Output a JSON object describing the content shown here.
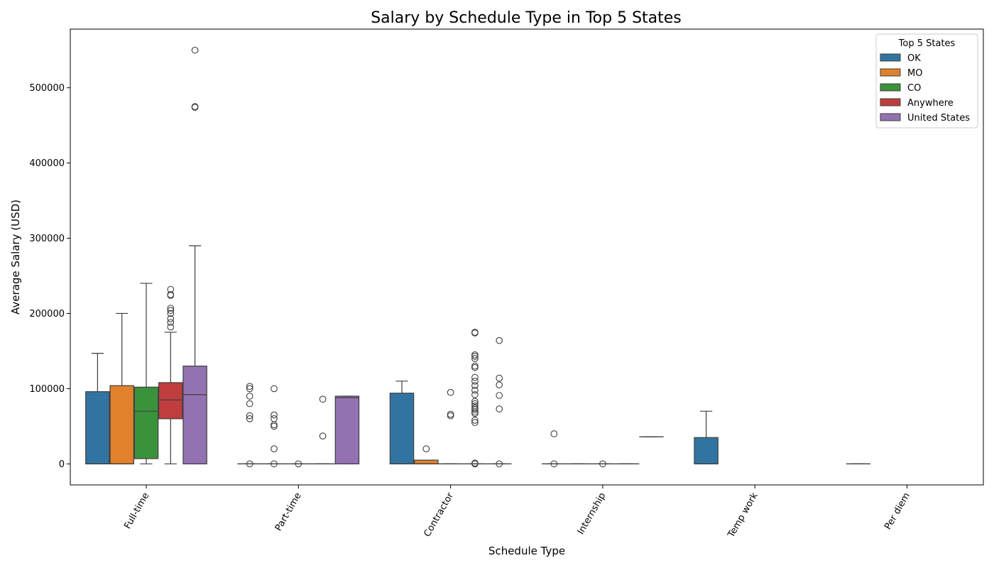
{
  "chart_data": {
    "type": "box",
    "title": "Salary by Schedule Type in Top 5 States",
    "xlabel": "Schedule Type",
    "ylabel": "Average Salary (USD)",
    "categories": [
      "Full-time",
      "Part-time",
      "Contractor",
      "Internship",
      "Temp work",
      "Per diem"
    ],
    "ylim": [
      -28000,
      578000
    ],
    "yticks": [
      0,
      100000,
      200000,
      300000,
      400000,
      500000
    ],
    "grid": false,
    "legend": {
      "title": "Top 5 States",
      "position": "top-right"
    },
    "series": [
      {
        "name": "OK",
        "color": "#3274a1",
        "boxes": [
          {
            "category": "Full-time",
            "whisker_low": 0,
            "q1": 0,
            "median": 0,
            "q3": 96000,
            "whisker_high": 147000,
            "outliers": []
          },
          {
            "category": "Part-time",
            "whisker_low": 0,
            "q1": 0,
            "median": 0,
            "q3": 0,
            "whisker_high": 0,
            "outliers": [
              103000,
              100000,
              90000,
              80000,
              64000,
              60000,
              0
            ]
          },
          {
            "category": "Contractor",
            "whisker_low": 0,
            "q1": 0,
            "median": 0,
            "q3": 94000,
            "whisker_high": 110000,
            "outliers": []
          },
          {
            "category": "Internship",
            "whisker_low": 0,
            "q1": 0,
            "median": 0,
            "q3": 0,
            "whisker_high": 0,
            "outliers": [
              40000,
              0
            ]
          },
          {
            "category": "Temp work",
            "whisker_low": 0,
            "q1": 0,
            "median": 0,
            "q3": 35000,
            "whisker_high": 70000,
            "outliers": []
          },
          {
            "category": "Per diem",
            "whisker_low": 0,
            "q1": 0,
            "median": 0,
            "q3": 0,
            "whisker_high": 0,
            "outliers": []
          }
        ]
      },
      {
        "name": "MO",
        "color": "#e1812c",
        "boxes": [
          {
            "category": "Full-time",
            "whisker_low": 0,
            "q1": 0,
            "median": 0,
            "q3": 104000,
            "whisker_high": 200000,
            "outliers": []
          },
          {
            "category": "Part-time",
            "whisker_low": 0,
            "q1": 0,
            "median": 0,
            "q3": 0,
            "whisker_high": 0,
            "outliers": [
              100000,
              65000,
              60000,
              52000,
              50000,
              20000,
              0
            ]
          },
          {
            "category": "Contractor",
            "whisker_low": 0,
            "q1": 0,
            "median": 0,
            "q3": 5000,
            "whisker_high": 5000,
            "outliers": [
              20000
            ]
          },
          {
            "category": "Internship",
            "whisker_low": 0,
            "q1": 0,
            "median": 0,
            "q3": 0,
            "whisker_high": 0,
            "outliers": []
          }
        ]
      },
      {
        "name": "CO",
        "color": "#3a923a",
        "boxes": [
          {
            "category": "Full-time",
            "whisker_low": 0,
            "q1": 7000,
            "median": 70000,
            "q3": 102000,
            "whisker_high": 240000,
            "outliers": []
          },
          {
            "category": "Part-time",
            "whisker_low": 0,
            "q1": 0,
            "median": 0,
            "q3": 0,
            "whisker_high": 0,
            "outliers": [
              0
            ]
          },
          {
            "category": "Contractor",
            "whisker_low": 0,
            "q1": 0,
            "median": 0,
            "q3": 0,
            "whisker_high": 0,
            "outliers": [
              95000,
              66000,
              64000
            ]
          },
          {
            "category": "Internship",
            "whisker_low": 0,
            "q1": 0,
            "median": 0,
            "q3": 0,
            "whisker_high": 0,
            "outliers": [
              0
            ]
          }
        ]
      },
      {
        "name": "Anywhere",
        "color": "#c03d3e",
        "boxes": [
          {
            "category": "Full-time",
            "whisker_low": 0,
            "q1": 60000,
            "median": 85000,
            "q3": 108000,
            "whisker_high": 175000,
            "outliers": [
              232000,
              225000,
              224000,
              207000,
              204000,
              200000,
              193000,
              188000,
              182000
            ]
          },
          {
            "category": "Part-time",
            "whisker_low": 0,
            "q1": 0,
            "median": 0,
            "q3": 0,
            "whisker_high": 0,
            "outliers": [
              86000,
              37000
            ]
          },
          {
            "category": "Contractor",
            "whisker_low": 0,
            "q1": 0,
            "median": 0,
            "q3": 0,
            "whisker_high": 0,
            "outliers": [
              175000,
              174000,
              145000,
              143000,
              140000,
              130000,
              128000,
              115000,
              110000,
              104000,
              98000,
              92000,
              83000,
              80000,
              77000,
              74000,
              72000,
              69000,
              67000,
              58000,
              55000,
              1000,
              0
            ]
          },
          {
            "category": "Internship",
            "whisker_low": 0,
            "q1": 0,
            "median": 0,
            "q3": 0,
            "whisker_high": 0,
            "outliers": []
          }
        ]
      },
      {
        "name": "United States",
        "color": "#9372b2",
        "boxes": [
          {
            "category": "Full-time",
            "whisker_low": 0,
            "q1": 0,
            "median": 92000,
            "q3": 130000,
            "whisker_high": 290000,
            "outliers": [
              550000,
              475000,
              474000
            ]
          },
          {
            "category": "Part-time",
            "whisker_low": 0,
            "q1": 0,
            "median": 88000,
            "q3": 90000,
            "whisker_high": 90000,
            "outliers": []
          },
          {
            "category": "Contractor",
            "whisker_low": 0,
            "q1": 0,
            "median": 0,
            "q3": 0,
            "whisker_high": 0,
            "outliers": [
              164000,
              114000,
              105000,
              91000,
              73000,
              0
            ]
          },
          {
            "category": "Internship",
            "whisker_low": 36000,
            "q1": 36000,
            "median": 36000,
            "q3": 36000,
            "whisker_high": 36000,
            "outliers": []
          }
        ]
      }
    ]
  }
}
